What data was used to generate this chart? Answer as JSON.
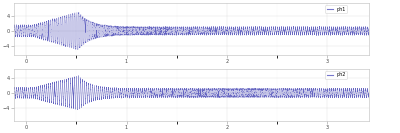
{
  "subplot1_label": "ph1",
  "subplot2_label": "ph2",
  "line_color": "#5555bb",
  "background_color": "#ffffff",
  "xlim": [
    -0.12,
    3.42
  ],
  "ylim1": [
    -6.5,
    7.5
  ],
  "ylim2": [
    -7.5,
    6.5
  ],
  "yticks1": [
    -4,
    0,
    4
  ],
  "yticks2": [
    -4,
    0,
    4
  ],
  "sample_rate": 8000,
  "duration": 3.54,
  "t_start": -0.12,
  "freq_signal": 50,
  "transition_time": 0.52,
  "amp_before1": 5.0,
  "amp_after1": 1.0,
  "amp_before2": 4.5,
  "amp_after2": 1.1,
  "noise_level": 0.08,
  "legend_color": "#7777cc",
  "fig_width": 4.0,
  "fig_height": 1.33,
  "dpi": 100
}
